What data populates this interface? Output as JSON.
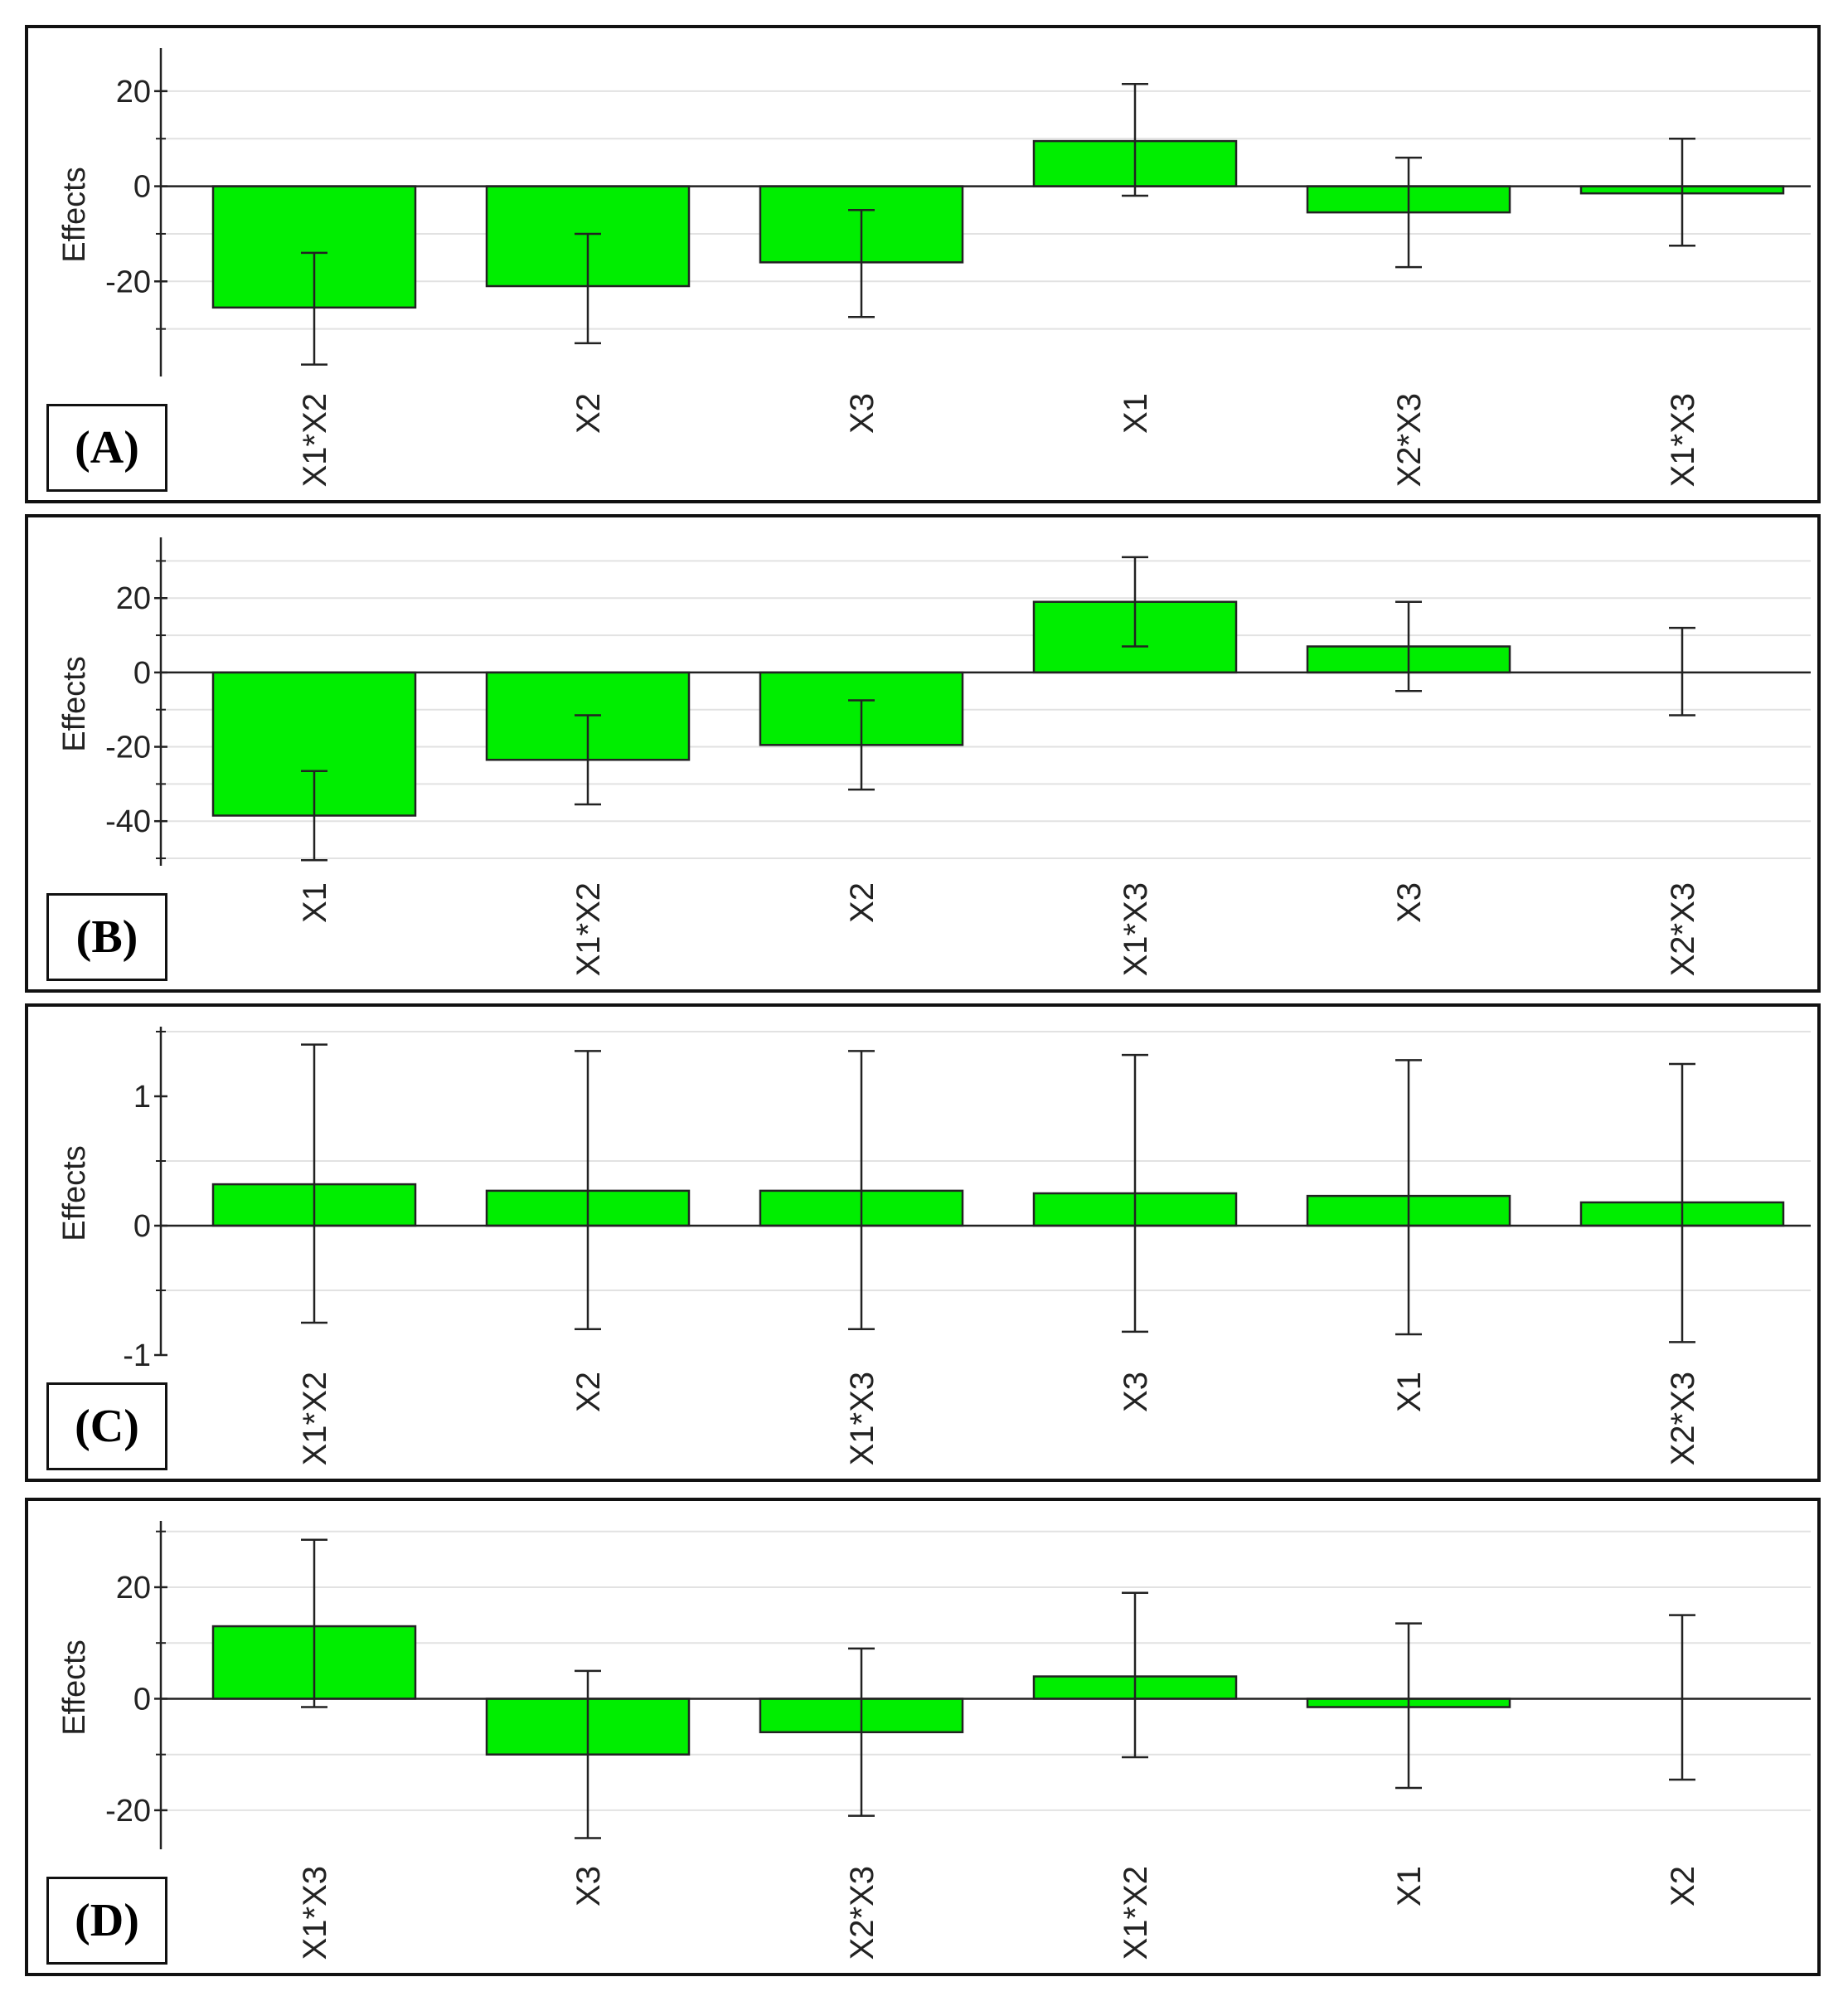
{
  "chart_data": [
    {
      "type": "bar",
      "label": "(A)",
      "ylabel": "Effects",
      "ylim": [
        -40,
        28
      ],
      "yticks": [
        -20,
        0,
        20
      ],
      "minor_ticks": [
        -30,
        -10,
        10
      ],
      "grid": [
        -30,
        -20,
        -10,
        10,
        20
      ],
      "categories": [
        "X1*X2",
        "X2",
        "X3",
        "X1",
        "X2*X3",
        "X1*X3"
      ],
      "values": [
        -25.5,
        -21,
        -16,
        9.5,
        -5.5,
        -1.5
      ],
      "error_low": [
        -37.5,
        -33,
        -27.5,
        -2,
        -17,
        -12.5
      ],
      "error_high": [
        -14,
        -10,
        -5,
        21.5,
        6,
        10
      ],
      "bar_color": "#00ee00"
    },
    {
      "type": "bar",
      "label": "(B)",
      "ylabel": "Effects",
      "ylim": [
        -52,
        35
      ],
      "yticks": [
        -40,
        -20,
        0,
        20
      ],
      "minor_ticks": [
        -50,
        -30,
        -10,
        10,
        30
      ],
      "grid": [
        -50,
        -40,
        -30,
        -20,
        -10,
        10,
        20,
        30
      ],
      "categories": [
        "X1",
        "X1*X2",
        "X2",
        "X1*X3",
        "X3",
        "X2*X3"
      ],
      "values": [
        -38.5,
        -23.5,
        -19.5,
        19,
        7,
        0
      ],
      "error_low": [
        -50.5,
        -35.5,
        -31.5,
        7,
        -5,
        -11.5
      ],
      "error_high": [
        -26.5,
        -11.5,
        -7.5,
        31,
        19,
        12
      ],
      "bar_color": "#00ee00"
    },
    {
      "type": "bar",
      "label": "(C)",
      "ylabel": "Effects",
      "ylim": [
        -1,
        1.5
      ],
      "yticks": [
        -1,
        0,
        1
      ],
      "minor_ticks": [
        -0.5,
        0.5,
        1.5
      ],
      "grid": [
        -0.5,
        0.5,
        1.5
      ],
      "categories": [
        "X1*X2",
        "X2",
        "X1*X3",
        "X3",
        "X1",
        "X2*X3"
      ],
      "values": [
        0.32,
        0.27,
        0.27,
        0.25,
        0.23,
        0.18
      ],
      "error_low": [
        -0.75,
        -0.8,
        -0.8,
        -0.82,
        -0.84,
        -0.9
      ],
      "error_high": [
        1.4,
        1.35,
        1.35,
        1.32,
        1.28,
        1.25
      ],
      "bar_color": "#00ee00"
    },
    {
      "type": "bar",
      "label": "(D)",
      "ylabel": "Effects",
      "ylim": [
        -27,
        31
      ],
      "yticks": [
        -20,
        0,
        20
      ],
      "minor_ticks": [
        -10,
        10,
        30
      ],
      "grid": [
        -20,
        -10,
        10,
        20,
        30
      ],
      "categories": [
        "X1*X3",
        "X3",
        "X2*X3",
        "X1*X2",
        "X1",
        "X2"
      ],
      "values": [
        13,
        -10,
        -6,
        4,
        -1.5,
        0
      ],
      "error_low": [
        -1.5,
        -25,
        -21,
        -10.5,
        -16,
        -14.5
      ],
      "error_high": [
        28.5,
        5,
        9,
        19,
        13.5,
        15
      ],
      "bar_color": "#00ee00"
    }
  ]
}
